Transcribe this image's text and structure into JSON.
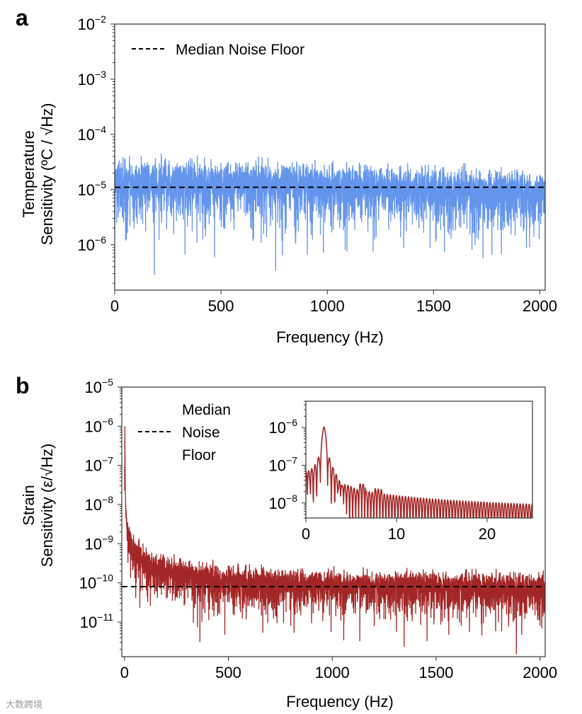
{
  "chart_data": [
    {
      "id": "a",
      "type": "line",
      "panel_label": "a",
      "title": "",
      "xlabel": "Frequency (Hz)",
      "ylabel_lines": [
        "Temperature",
        "Sensitivity (ºC / √Hz)"
      ],
      "xscale": "linear",
      "yscale": "log",
      "xlim": [
        0,
        2025
      ],
      "ylim": [
        1.5e-07,
        0.01
      ],
      "xticks": [
        {
          "value": 0,
          "label": "0"
        },
        {
          "value": 500,
          "label": "500"
        },
        {
          "value": 1000,
          "label": "1000"
        },
        {
          "value": 1500,
          "label": "1500"
        },
        {
          "value": 2000,
          "label": "2000"
        }
      ],
      "yticks": [
        {
          "value": 0.01,
          "base": "10",
          "exp": "−2"
        },
        {
          "value": 0.001,
          "base": "10",
          "exp": "−3"
        },
        {
          "value": 0.0001,
          "base": "10",
          "exp": "−4"
        },
        {
          "value": 1e-05,
          "base": "10",
          "exp": "−5"
        },
        {
          "value": 1e-06,
          "base": "10",
          "exp": "−6"
        }
      ],
      "grid": false,
      "legend": {
        "placement": "top-left",
        "entries": [
          {
            "label": "Median Noise Floor",
            "style": "dashed",
            "color": "#000000"
          }
        ]
      },
      "median_noise_floor": 1.1e-05,
      "series": [
        {
          "name": "Temperature noise spectrum",
          "color": "#6495ED",
          "model": {
            "kind": "rayleigh-noise",
            "scale_at_0Hz": 1.7e-05,
            "scale_at_2000Hz": 9.5e-06,
            "samples": 4000,
            "seed": 7
          },
          "approx_points": [
            [
              0,
              6e-05
            ],
            [
              500,
              5e-05
            ],
            [
              1000,
              3.5e-05
            ],
            [
              1500,
              3e-05
            ],
            [
              2000,
              2.5e-05
            ]
          ]
        }
      ]
    },
    {
      "id": "b",
      "type": "line",
      "panel_label": "b",
      "title": "",
      "xlabel": "Frequency (Hz)",
      "ylabel_lines": [
        "Strain",
        "Sensitivity (ε/√Hz)"
      ],
      "xscale": "linear",
      "yscale": "log",
      "xlim": [
        -13,
        2025
      ],
      "ylim": [
        1.3e-12,
        1e-05
      ],
      "xticks": [
        {
          "value": 0,
          "label": "0"
        },
        {
          "value": 500,
          "label": "500"
        },
        {
          "value": 1000,
          "label": "1000"
        },
        {
          "value": 1500,
          "label": "1500"
        },
        {
          "value": 2000,
          "label": "2000"
        }
      ],
      "yticks": [
        {
          "value": 1e-05,
          "base": "10",
          "exp": "−5"
        },
        {
          "value": 1e-06,
          "base": "10",
          "exp": "−6"
        },
        {
          "value": 1e-07,
          "base": "10",
          "exp": "−7"
        },
        {
          "value": 1e-08,
          "base": "10",
          "exp": "−8"
        },
        {
          "value": 1e-09,
          "base": "10",
          "exp": "−9"
        },
        {
          "value": 1e-10,
          "base": "10",
          "exp": "−10"
        },
        {
          "value": 1e-11,
          "base": "10",
          "exp": "−11"
        }
      ],
      "grid": false,
      "legend": {
        "placement": "top-left",
        "entries": [
          {
            "label_lines": [
              "Median",
              "Noise",
              "Floor"
            ],
            "style": "dashed",
            "color": "#000000"
          }
        ]
      },
      "median_noise_floor": 8e-11,
      "series": [
        {
          "name": "Strain noise spectrum",
          "color": "#A32626",
          "model": {
            "kind": "rayleigh-noise-1/f",
            "floor": 7e-11,
            "one_over_f_coeff": 3e-08,
            "peak_freq": 2,
            "peak_value": 1e-06,
            "samples": 4000,
            "seed": 11
          },
          "approx_points": [
            [
              2,
              1e-06
            ],
            [
              50,
              1.5e-09
            ],
            [
              100,
              1e-09
            ],
            [
              500,
              4e-10
            ],
            [
              1000,
              3e-10
            ],
            [
              2000,
              2.5e-10
            ]
          ]
        }
      ]
    },
    {
      "id": "b-inset",
      "type": "line",
      "title": "",
      "xlabel": "",
      "ylabel": "",
      "xscale": "linear",
      "yscale": "log",
      "xlim": [
        0,
        25
      ],
      "ylim": [
        4e-09,
        5e-06
      ],
      "xticks": [
        {
          "value": 0,
          "label": "0"
        },
        {
          "value": 10,
          "label": "10"
        },
        {
          "value": 20,
          "label": "20"
        }
      ],
      "yticks": [
        {
          "value": 1e-06,
          "base": "10",
          "exp": "−6"
        },
        {
          "value": 1e-07,
          "base": "10",
          "exp": "−7"
        },
        {
          "value": 1e-08,
          "base": "10",
          "exp": "−8"
        }
      ],
      "grid": false,
      "series": [
        {
          "name": "Strain spectrum (low-frequency zoom)",
          "color": "#A32626",
          "model": {
            "kind": "sinc-peak-with-sidelobes",
            "peak_freq": 2,
            "peak_value": 1e-06,
            "lobe_period_hz": 0.333,
            "samples": 2500
          },
          "approx_points": [
            [
              0,
              7e-08
            ],
            [
              2,
              1e-06
            ],
            [
              3,
              1e-07
            ],
            [
              6.2,
              4e-08
            ],
            [
              8,
              3e-08
            ],
            [
              10,
              1.5e-08
            ],
            [
              20,
              8e-09
            ],
            [
              25,
              5e-09
            ]
          ]
        }
      ]
    }
  ],
  "watermark": "大数跨境"
}
